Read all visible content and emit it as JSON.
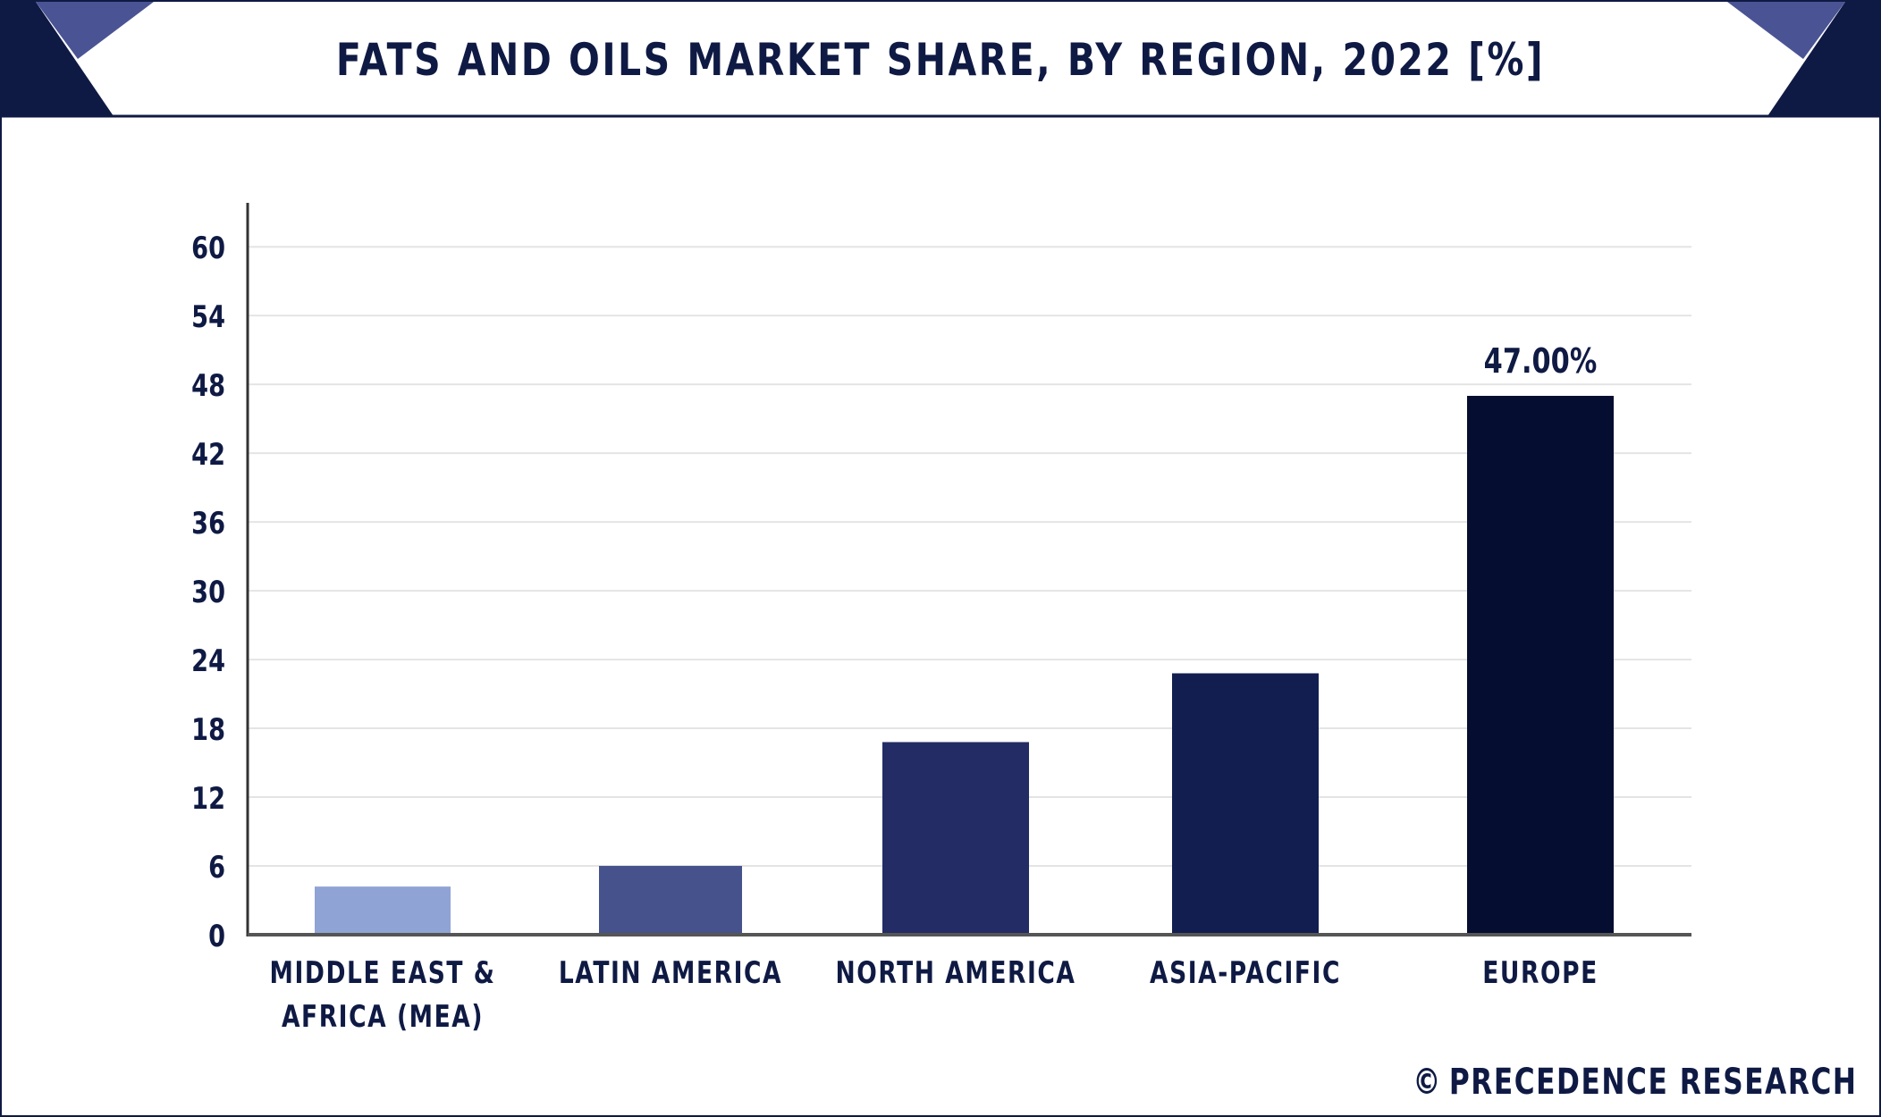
{
  "title": "FATS AND OILS MARKET SHARE, BY REGION, 2022 [%]",
  "brand": {
    "symbol": "©",
    "name": "PRECEDENCE RESEARCH"
  },
  "colors": {
    "frame": "#0f1a44",
    "corner_light": "#4a5494",
    "corner_dark": "#0f1a44",
    "grid": "#e4e4e4",
    "axis": "#555555"
  },
  "chart_data": {
    "type": "bar",
    "title": "FATS AND OILS MARKET SHARE, BY REGION, 2022 [%]",
    "categories": [
      [
        "MIDDLE EAST &",
        "AFRICA (MEA)"
      ],
      [
        "LATIN AMERICA"
      ],
      [
        "NORTH AMERICA"
      ],
      [
        "ASIA-PACIFIC"
      ],
      [
        "EUROPE"
      ]
    ],
    "values": [
      4.2,
      6.0,
      16.8,
      22.8,
      47.0
    ],
    "bar_colors": [
      "#90a3d5",
      "#46528b",
      "#232c64",
      "#121e50",
      "#050d30"
    ],
    "data_labels": [
      "",
      "",
      "",
      "",
      "47.00%"
    ],
    "yticks": [
      0,
      6,
      12,
      18,
      24,
      30,
      36,
      42,
      48,
      54,
      60
    ],
    "ylim": [
      0,
      64
    ],
    "xlabel": "",
    "ylabel": "",
    "grid": true
  }
}
